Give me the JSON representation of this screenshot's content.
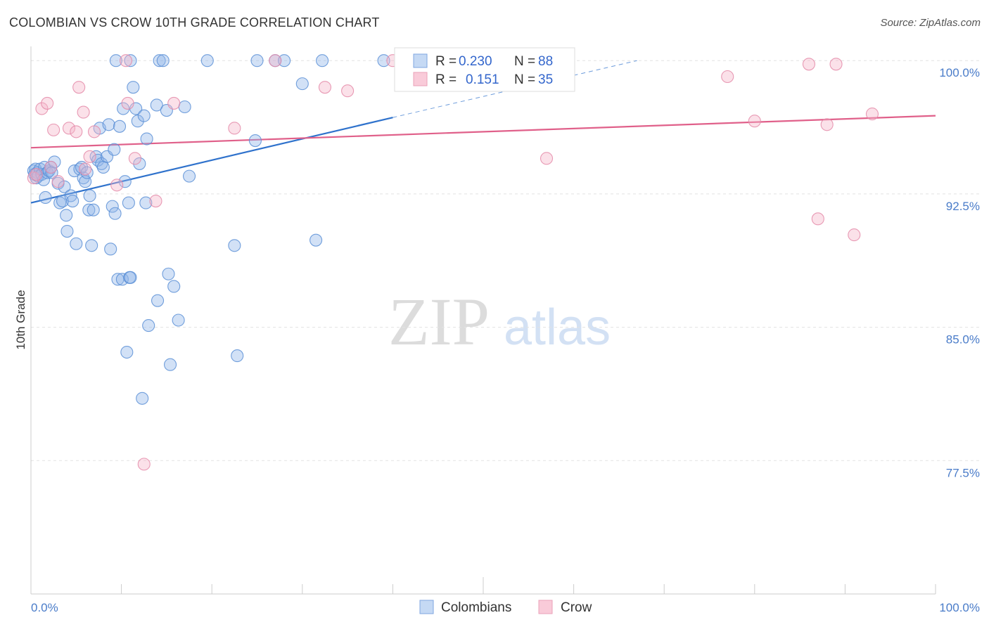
{
  "title": "COLOMBIAN VS CROW 10TH GRADE CORRELATION CHART",
  "source": "Source: ZipAtlas.com",
  "watermark": {
    "zip": "ZIP",
    "atlas": "atlas"
  },
  "chart_data": {
    "type": "scatter",
    "title": "COLOMBIAN VS CROW 10TH GRADE CORRELATION CHART",
    "xlabel": "",
    "ylabel": "10th Grade",
    "xlim": [
      0,
      100
    ],
    "ylim": [
      70,
      100.8
    ],
    "x_tick_labels": [
      "0.0%",
      "100.0%"
    ],
    "y_ticks": [
      {
        "value": 100.0,
        "label": "100.0%"
      },
      {
        "value": 92.5,
        "label": "92.5%"
      },
      {
        "value": 85.0,
        "label": "85.0%"
      },
      {
        "value": 77.5,
        "label": "77.5%"
      }
    ],
    "legend_position": "top-center",
    "stats": [
      {
        "r_label": "R =",
        "r_value": "0.230",
        "n_label": "N =",
        "n_value": "88"
      },
      {
        "r_label": "R =",
        "r_value": "0.151",
        "n_label": "N =",
        "n_value": "35"
      }
    ],
    "series": [
      {
        "name": "Colombians",
        "color": "#8fb5e8",
        "edge": "#5b8fd6",
        "line_color": "#2f72cc",
        "trend": {
          "x0": 0,
          "y0": 92.0,
          "x1": 40,
          "y1": 96.8,
          "dash_to_x": 67,
          "dash_to_y": 100.0
        },
        "points": [
          [
            0.3,
            93.8
          ],
          [
            0.4,
            93.6
          ],
          [
            0.5,
            93.9
          ],
          [
            0.6,
            93.4
          ],
          [
            0.7,
            93.7
          ],
          [
            0.8,
            93.5
          ],
          [
            1.0,
            93.9
          ],
          [
            1.2,
            93.6
          ],
          [
            1.4,
            93.3
          ],
          [
            1.5,
            94.0
          ],
          [
            1.6,
            92.3
          ],
          [
            1.8,
            93.7
          ],
          [
            2.0,
            93.8
          ],
          [
            2.2,
            94.0
          ],
          [
            2.3,
            93.7
          ],
          [
            2.6,
            94.3
          ],
          [
            3.0,
            93.1
          ],
          [
            3.2,
            92.0
          ],
          [
            3.5,
            92.1
          ],
          [
            3.7,
            92.9
          ],
          [
            3.9,
            91.3
          ],
          [
            4.0,
            90.4
          ],
          [
            4.4,
            92.4
          ],
          [
            4.6,
            92.1
          ],
          [
            4.8,
            93.8
          ],
          [
            5.0,
            89.7
          ],
          [
            5.4,
            93.9
          ],
          [
            5.6,
            94.0
          ],
          [
            5.8,
            93.4
          ],
          [
            6.0,
            93.2
          ],
          [
            6.2,
            93.7
          ],
          [
            6.4,
            91.6
          ],
          [
            6.5,
            92.4
          ],
          [
            6.7,
            89.6
          ],
          [
            6.9,
            91.6
          ],
          [
            7.2,
            94.6
          ],
          [
            7.4,
            94.4
          ],
          [
            7.6,
            96.2
          ],
          [
            7.8,
            94.2
          ],
          [
            8.0,
            94.0
          ],
          [
            8.4,
            94.6
          ],
          [
            8.6,
            96.4
          ],
          [
            8.8,
            89.4
          ],
          [
            9.0,
            91.8
          ],
          [
            9.2,
            95.0
          ],
          [
            9.3,
            91.4
          ],
          [
            9.6,
            87.7
          ],
          [
            9.8,
            96.3
          ],
          [
            10.1,
            87.7
          ],
          [
            10.2,
            97.3
          ],
          [
            10.4,
            93.2
          ],
          [
            10.6,
            83.6
          ],
          [
            10.8,
            92.0
          ],
          [
            10.9,
            87.8
          ],
          [
            11.0,
            87.8
          ],
          [
            11.3,
            98.5
          ],
          [
            11.6,
            97.3
          ],
          [
            11.8,
            96.6
          ],
          [
            12.0,
            94.2
          ],
          [
            12.3,
            81.0
          ],
          [
            12.5,
            96.9
          ],
          [
            12.7,
            92.0
          ],
          [
            12.8,
            95.6
          ],
          [
            13.0,
            85.1
          ],
          [
            13.9,
            97.5
          ],
          [
            14.0,
            86.5
          ],
          [
            14.2,
            100.0
          ],
          [
            14.6,
            100.0
          ],
          [
            15.0,
            97.2
          ],
          [
            15.2,
            88.0
          ],
          [
            15.4,
            82.9
          ],
          [
            15.8,
            87.3
          ],
          [
            16.3,
            85.4
          ],
          [
            17.0,
            97.4
          ],
          [
            17.5,
            93.5
          ],
          [
            19.5,
            100.0
          ],
          [
            22.5,
            89.6
          ],
          [
            22.8,
            83.4
          ],
          [
            24.8,
            95.5
          ],
          [
            25.0,
            100.0
          ],
          [
            27.0,
            100.0
          ],
          [
            28.0,
            100.0
          ],
          [
            30.0,
            98.7
          ],
          [
            31.5,
            89.9
          ],
          [
            32.2,
            100.0
          ],
          [
            39.0,
            100.0
          ],
          [
            9.4,
            100.0
          ],
          [
            11.0,
            100.0
          ]
        ]
      },
      {
        "name": "Crow",
        "color": "#f4b3c8",
        "edge": "#e48aa8",
        "line_color": "#e0608a",
        "trend": {
          "x0": 0,
          "y0": 95.1,
          "x1": 100,
          "y1": 96.9
        },
        "points": [
          [
            0.3,
            93.4
          ],
          [
            0.6,
            93.6
          ],
          [
            1.2,
            97.3
          ],
          [
            1.8,
            97.6
          ],
          [
            2.2,
            94.0
          ],
          [
            2.5,
            96.1
          ],
          [
            3.0,
            93.2
          ],
          [
            4.2,
            96.2
          ],
          [
            5.0,
            96.0
          ],
          [
            5.3,
            98.5
          ],
          [
            5.8,
            97.1
          ],
          [
            6.5,
            94.6
          ],
          [
            7.0,
            96.0
          ],
          [
            9.5,
            93.0
          ],
          [
            10.5,
            100.0
          ],
          [
            10.7,
            97.6
          ],
          [
            11.5,
            94.5
          ],
          [
            12.5,
            77.3
          ],
          [
            13.8,
            92.1
          ],
          [
            15.8,
            97.6
          ],
          [
            22.5,
            96.2
          ],
          [
            27.0,
            100.0
          ],
          [
            32.5,
            98.5
          ],
          [
            35.0,
            98.3
          ],
          [
            40.0,
            100.0
          ],
          [
            57.0,
            94.5
          ],
          [
            77.0,
            99.1
          ],
          [
            80.0,
            96.6
          ],
          [
            86.0,
            99.8
          ],
          [
            87.0,
            91.1
          ],
          [
            88.0,
            96.4
          ],
          [
            89.0,
            99.8
          ],
          [
            91.0,
            90.2
          ],
          [
            93.0,
            97.0
          ],
          [
            6.0,
            93.9
          ]
        ]
      }
    ]
  }
}
